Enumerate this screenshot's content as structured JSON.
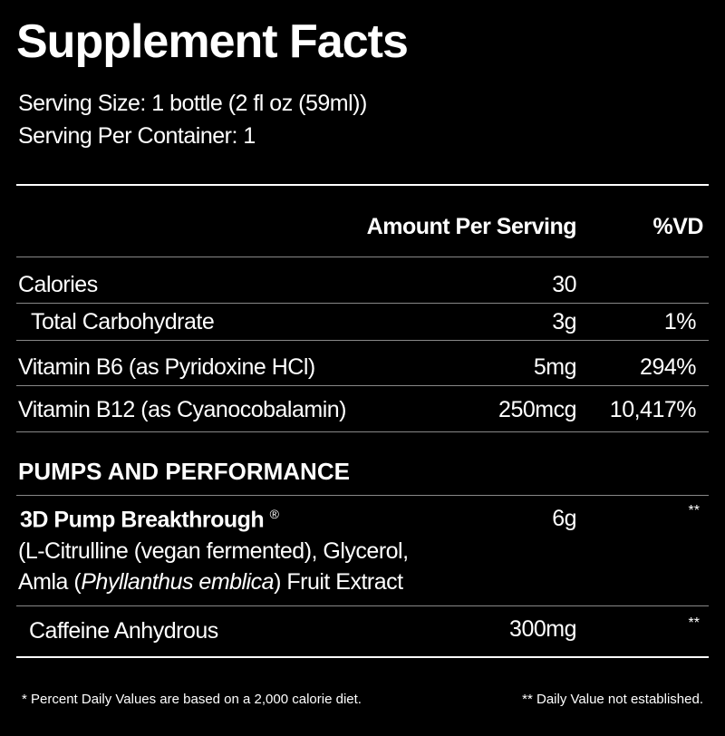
{
  "title": "Supplement Facts",
  "serving_size": "Serving Size: 1 bottle (2 fl oz (59ml))",
  "servings_per_container": "Serving Per Container: 1",
  "header": {
    "amount": "Amount Per Serving",
    "dv": "%VD"
  },
  "rows": [
    {
      "name": "Calories",
      "amount": "30"
    },
    {
      "name": "Total Carbohydrate",
      "amount": "3g",
      "dv": "1%"
    },
    {
      "name": "Vitamin B6 (as Pyridoxine HCl)",
      "amount": "5mg",
      "dv": "294%"
    },
    {
      "name": "Vitamin B12 (as Cyanocobalamin)",
      "amount": "250mcg",
      "dv": "10,417%"
    }
  ],
  "section": "PUMPS AND PERFORMANCE",
  "blend": {
    "name": "3D Pump Breakthrough",
    "mark": "®",
    "amount": "6g",
    "dv": "**",
    "ingredients_line1": "(L-Citrulline (vegan fermented), Glycerol,",
    "ingredients_line2_start": "Amla (",
    "ingredients_line2_italic": "Phyllanthus emblica",
    "ingredients_line2_end": ") Fruit Extract"
  },
  "caffeine": {
    "name": "Caffeine Anhydrous",
    "amount": "300mg",
    "dv": "**"
  },
  "footnotes": {
    "left": "* Percent Daily Values are based on a 2,000 calorie diet.",
    "right": "** Daily Value not established."
  }
}
